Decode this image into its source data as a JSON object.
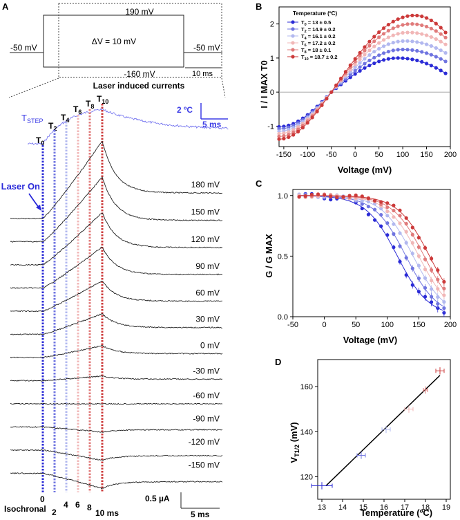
{
  "panel_letters": {
    "a": "A",
    "b": "B",
    "c": "C",
    "d": "D"
  },
  "colors": {
    "temps": [
      "#2b2bd6",
      "#6f74e0",
      "#b2b8ef",
      "#f1b7b7",
      "#e07b7b",
      "#cc3a3a"
    ],
    "trace": "#222222",
    "tstep": "#3d3de6",
    "laser": "#2a2ad9",
    "fit": "#000000"
  },
  "protocol": {
    "top_label": "190 mV",
    "bottom_label": "-160 mV",
    "left_label": "-50 mV",
    "right_label": "-50 mV",
    "delta_label": "ΔV = 10 mV",
    "scale_label": "10 ms",
    "caption": "Laser induced currents"
  },
  "traces": {
    "tstep_label": "T",
    "tstep_sub": "STEP",
    "temp_scale_label": "2 ºC",
    "time_scale_label": "5 ms",
    "laser_label": "Laser On",
    "t_labels": [
      {
        "t": "T",
        "sub": "0"
      },
      {
        "t": "T",
        "sub": "2"
      },
      {
        "t": "T",
        "sub": "4"
      },
      {
        "t": "T",
        "sub": "6"
      },
      {
        "t": "T",
        "sub": "8"
      },
      {
        "t": "T",
        "sub": "10"
      }
    ],
    "voltages": [
      "180 mV",
      "150 mV",
      "120 mV",
      "90 mV",
      "60 mV",
      "30 mV",
      "0 mV",
      "-30 mV",
      "-60 mV",
      "-90 mV",
      "-120 mV",
      "-150 mV"
    ],
    "voltage_values": [
      180,
      150,
      120,
      90,
      60,
      30,
      0,
      -30,
      -60,
      -90,
      -120,
      -150
    ],
    "time_marks": [
      "0",
      "2",
      "4",
      "6",
      "8",
      "10 ms"
    ],
    "isochronal_label": "Isochronal",
    "current_scale_label": "0.5 µA",
    "bottom_time_scale_label": "5 ms"
  },
  "chart_data": [
    {
      "panel": "B",
      "type": "line",
      "xlabel": "Voltage (mV)",
      "ylabel": "I / I MAX T0",
      "xlim": [
        -160,
        200
      ],
      "ylim": [
        -1.6,
        2.5
      ],
      "xticks": [
        "-150",
        "-100",
        "-50",
        "0",
        "50",
        "100",
        "150",
        "200"
      ],
      "yticks": [
        "-1",
        "0",
        "1",
        "2"
      ],
      "legend_title": "Temperature (ºC)",
      "legend_position": "top-left",
      "series": [
        {
          "label_t": "T",
          "label_sub": "0",
          "label_rest": " = 13 ± 0.5",
          "amp": 1.0
        },
        {
          "label_t": "T",
          "label_sub": "2",
          "label_rest": " = 14.9 ± 0.2",
          "amp": 1.25
        },
        {
          "label_t": "T",
          "label_sub": "4",
          "label_rest": " = 16.1 ± 0.2",
          "amp": 1.5
        },
        {
          "label_t": "T",
          "label_sub": "6",
          "label_rest": " = 17.2 ± 0.2",
          "amp": 1.75
        },
        {
          "label_t": "T",
          "label_sub": "8",
          "label_rest": " = 18 ± 0.1",
          "amp": 2.0
        },
        {
          "label_t": "T",
          "label_sub": "10",
          "label_rest": " = 18.7 ± 0.2",
          "amp": 2.25
        }
      ],
      "peak_voltages": [
        90,
        100,
        105,
        112,
        118,
        125
      ],
      "minimums": [
        -1.02,
        -1.08,
        -1.15,
        -1.22,
        -1.3,
        -1.38
      ],
      "ends": [
        0.55,
        0.9,
        1.15,
        1.4,
        1.6,
        1.75
      ],
      "reversal": -50
    },
    {
      "panel": "C",
      "type": "scatter",
      "xlabel": "Voltage (mV)",
      "ylabel": "G / G MAX",
      "xlim": [
        -50,
        200
      ],
      "ylim": [
        0,
        1.05
      ],
      "xticks": [
        "-50",
        "0",
        "50",
        "100",
        "150",
        "200"
      ],
      "yticks": [
        "0.0",
        "0.5",
        "1.0"
      ],
      "v_half": [
        116,
        129.5,
        141,
        150,
        158.5,
        167
      ],
      "slope": 25,
      "x": [
        -40,
        -30,
        -20,
        -10,
        0,
        10,
        20,
        30,
        40,
        50,
        60,
        70,
        80,
        90,
        100,
        110,
        120,
        130,
        140,
        150,
        160,
        170,
        180,
        190
      ]
    },
    {
      "panel": "D",
      "type": "scatter",
      "xlabel": "Temperature (ºC)",
      "ylabel": "V",
      "ylabel_sub": "T1/2",
      "ylabel_unit": " (mV)",
      "xlim": [
        12.8,
        19.2
      ],
      "ylim": [
        110,
        172
      ],
      "xticks": [
        "13",
        "14",
        "15",
        "16",
        "17",
        "18",
        "19"
      ],
      "yticks": [
        "120",
        "140",
        "160"
      ],
      "x": [
        13,
        14.9,
        16.1,
        17.2,
        18,
        18.7
      ],
      "y": [
        116,
        129.5,
        141,
        150,
        158.5,
        167
      ],
      "xerr": [
        0.5,
        0.2,
        0.2,
        0.2,
        0.1,
        0.2
      ],
      "fit": {
        "x": [
          13.2,
          18.7
        ],
        "y": [
          116,
          165
        ]
      }
    }
  ]
}
